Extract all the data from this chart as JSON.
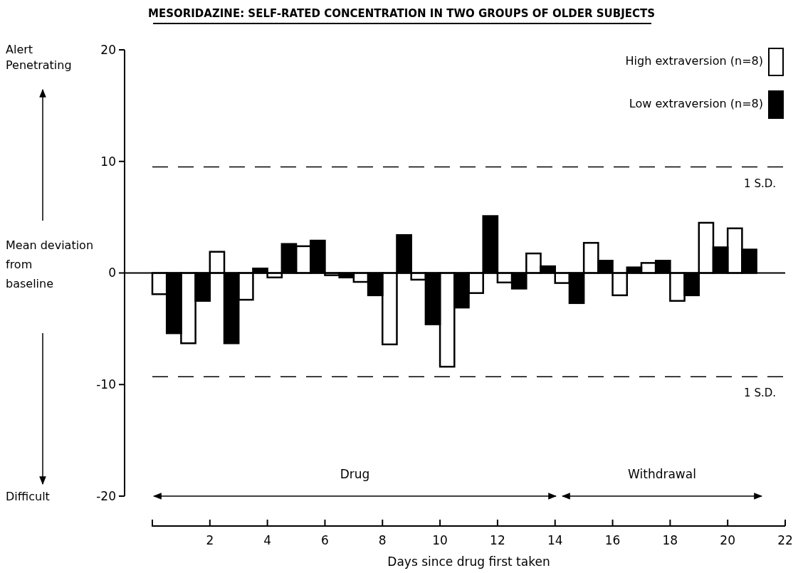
{
  "chart_data": {
    "type": "bar",
    "title": "MESORIDAZINE: SELF-RATED CONCENTRATION IN TWO GROUPS OF OLDER SUBJECTS",
    "xlabel": "Days since drug first taken",
    "ylabel": "Mean deviation from baseline",
    "x": [
      0.5,
      1.5,
      2.5,
      3.5,
      4.5,
      5.5,
      6.5,
      7.5,
      8.5,
      9.5,
      10.5,
      11.5,
      12.5,
      13.5,
      14.5,
      15.5,
      16.5,
      17.5,
      18.5,
      19.5,
      20.5
    ],
    "series": [
      {
        "name": "High extraversion (n=8)",
        "color": "#ffffff",
        "values": [
          -1.9,
          -6.3,
          1.9,
          -2.4,
          -0.4,
          2.4,
          -0.2,
          -0.8,
          -6.4,
          -0.6,
          -8.4,
          -1.8,
          -0.85,
          1.75,
          -0.9,
          2.7,
          -2.0,
          0.9,
          -2.5,
          4.5,
          4.0
        ]
      },
      {
        "name": "Low extraversion (n=8)",
        "color": "#000000",
        "values": [
          -5.4,
          -2.5,
          -6.3,
          0.4,
          2.6,
          2.9,
          -0.4,
          -2.0,
          3.4,
          -4.6,
          -3.1,
          5.1,
          -1.4,
          0.6,
          -2.7,
          1.1,
          0.5,
          1.1,
          -2.0,
          2.3,
          2.1
        ]
      }
    ],
    "xlim": [
      0,
      22
    ],
    "xticks": [
      2,
      4,
      6,
      8,
      10,
      12,
      14,
      16,
      18,
      20,
      22
    ],
    "ylim": [
      -20,
      20
    ],
    "yticks": [
      -20,
      -10,
      0,
      10,
      20
    ],
    "ref_lines": [
      {
        "axis": "y",
        "value": 9.5,
        "label": "1 S.D.",
        "line_style": "dashed"
      },
      {
        "axis": "y",
        "value": -9.3,
        "label": "1 S.D.",
        "line_style": "dashed"
      }
    ],
    "annotations": [
      "Alert Penetrating",
      "Difficult",
      "Drug",
      "Withdrawal"
    ],
    "legend": "top right",
    "grid": false
  }
}
